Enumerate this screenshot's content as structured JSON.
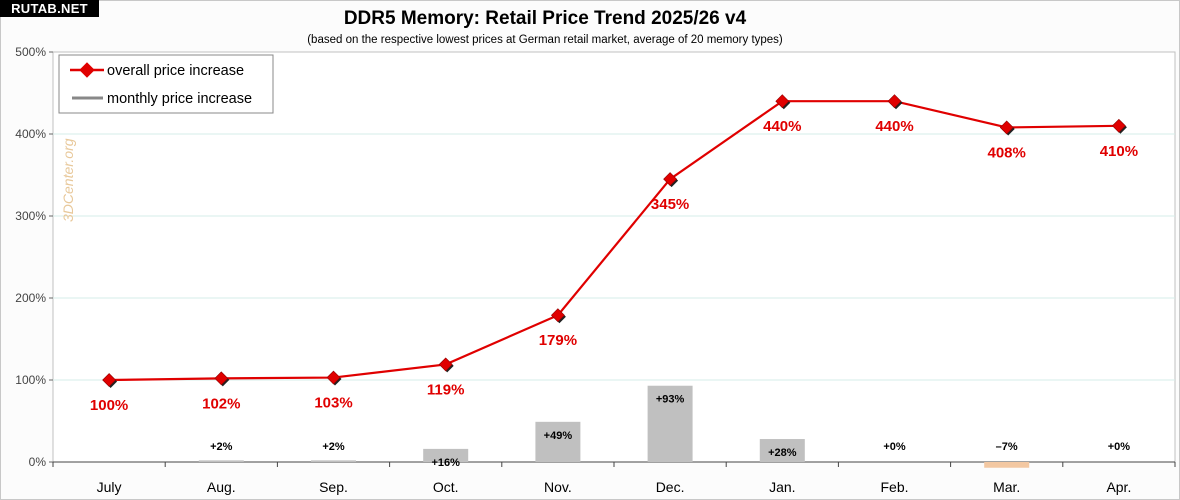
{
  "watermark": "RUTAB.NET",
  "credit": "3DCenter.org",
  "chart_data": {
    "type": "line",
    "title": "DDR5 Memory: Retail Price Trend 2025/26 v4",
    "subtitle": "(based on the respective lowest prices at German retail market, average of 20 memory types)",
    "categories": [
      "July",
      "Aug.",
      "Sep.",
      "Oct.",
      "Nov.",
      "Dec.",
      "Jan.",
      "Feb.",
      "Mar.",
      "Apr."
    ],
    "ylim": [
      0,
      500
    ],
    "yticks": [
      0,
      100,
      200,
      300,
      400,
      500
    ],
    "ytick_labels": [
      "0%",
      "100%",
      "200%",
      "300%",
      "400%",
      "500%"
    ],
    "grid": true,
    "legend_position": "top-left",
    "series": [
      {
        "name": "overall price increase",
        "kind": "line",
        "color": "#e00000",
        "values": [
          100,
          102,
          103,
          119,
          179,
          345,
          440,
          440,
          408,
          410
        ],
        "labels": [
          "100%",
          "102%",
          "103%",
          "119%",
          "179%",
          "345%",
          "440%",
          "440%",
          "408%",
          "410%"
        ]
      },
      {
        "name": "monthly price increase",
        "kind": "bar",
        "color": "#c0c0c0",
        "negative_color": "#f3c8a2",
        "values": [
          null,
          2,
          2,
          16,
          49,
          93,
          28,
          0,
          -7,
          0
        ],
        "labels": [
          "",
          "+2%",
          "+2%",
          "+16%",
          "+49%",
          "+93%",
          "+28%",
          "+0%",
          "–7%",
          "+0%"
        ]
      }
    ]
  }
}
